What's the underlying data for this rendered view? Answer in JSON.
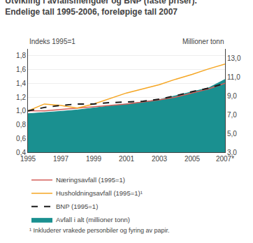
{
  "chart_data": {
    "type": "line",
    "title": "Utvikling i avfallsmengder og BNP (faste priser).",
    "subtitle": "Endelige tall 1995-2006, foreløpige tall 2007",
    "ylabel": "Indeks 1995=1",
    "y2label": "Millioner tonn",
    "annotations": [
      "¹ Inkluderer vrakede personbiler og fyring av papir."
    ],
    "x": [
      1995,
      1996,
      1997,
      1998,
      1999,
      2000,
      2001,
      2002,
      2003,
      2004,
      2005,
      2006,
      2007
    ],
    "xlim": [
      1995,
      2007
    ],
    "xticks": [
      1995,
      1997,
      1999,
      2001,
      2003,
      2005,
      {
        "value": 2007,
        "label": "2007*"
      }
    ],
    "ylim": [
      0.4,
      1.9
    ],
    "yticks": [
      {
        "value": 0.4,
        "label": "0,4"
      },
      {
        "value": 0.6,
        "label": "0,6"
      },
      {
        "value": 0.8,
        "label": "0,8"
      },
      {
        "value": 1.0,
        "label": "1,0"
      },
      {
        "value": 1.2,
        "label": "1,2"
      },
      {
        "value": 1.4,
        "label": "1,4"
      },
      {
        "value": 1.6,
        "label": "1,6"
      },
      {
        "value": 1.8,
        "label": "1,8"
      }
    ],
    "y2lim": [
      3.0,
      14.0
    ],
    "y2ticks": [
      {
        "value": 3.0,
        "label": "3,0"
      },
      {
        "value": 5.0,
        "label": "5,0"
      },
      {
        "value": 7.0,
        "label": "7,0"
      },
      {
        "value": 9.0,
        "label": "9,0"
      },
      {
        "value": 11.0,
        "label": "11,0"
      },
      {
        "value": 13.0,
        "label": "13,0"
      }
    ],
    "grid": true,
    "legend": "bottom",
    "series": [
      {
        "name": "Næringsavfall (1995=1)",
        "color": "#d45f5a",
        "type": "line",
        "line_style": "solid",
        "values": [
          1.0,
          1.0,
          1.02,
          1.04,
          1.06,
          1.08,
          1.1,
          1.13,
          1.16,
          1.2,
          1.26,
          1.32,
          1.4
        ]
      },
      {
        "name": "Husholdningsavfall (1995=1)¹",
        "color": "#f5a623",
        "type": "line",
        "line_style": "solid",
        "values": [
          1.0,
          1.1,
          1.08,
          1.04,
          1.1,
          1.18,
          1.26,
          1.32,
          1.38,
          1.46,
          1.53,
          1.61,
          1.68
        ]
      },
      {
        "name": "BNP (1995=1)",
        "color": "#1a1a1a",
        "type": "line",
        "line_style": "dashed",
        "values": [
          1.0,
          1.05,
          1.08,
          1.1,
          1.1,
          1.12,
          1.13,
          1.14,
          1.17,
          1.22,
          1.28,
          1.33,
          1.4
        ]
      },
      {
        "name": "Avfall i alt (millioner tonn)",
        "color": "#1a9090",
        "type": "area",
        "axis": "y2",
        "values": [
          7.1,
          7.2,
          7.35,
          7.5,
          7.7,
          7.9,
          8.1,
          8.35,
          8.6,
          9.0,
          9.45,
          9.85,
          10.75
        ]
      }
    ]
  }
}
